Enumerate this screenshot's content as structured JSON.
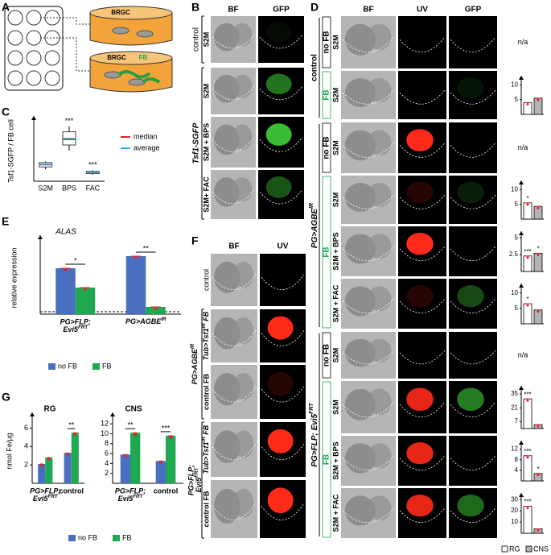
{
  "panel_letters": [
    "A",
    "B",
    "C",
    "D",
    "E",
    "F",
    "G"
  ],
  "panel_a": {
    "labels": [
      "BRGC",
      "BRGC",
      "FB"
    ]
  },
  "panel_b": {
    "columns": [
      "BF",
      "GFP"
    ],
    "groups": [
      {
        "label": "control",
        "rows": [
          "S2M"
        ]
      },
      {
        "label": "Tsf1-SGFP",
        "rows": [
          "S2M",
          "S2M + BPS",
          "S2M+ FAC"
        ]
      }
    ]
  },
  "panel_d": {
    "columns": [
      "BF",
      "UV",
      "GFP"
    ],
    "groups": [
      {
        "label": "control",
        "subgroups": [
          {
            "label": "no FB",
            "rows": [
              {
                "label": "S2M",
                "note": "n/a"
              }
            ]
          },
          {
            "label": "FB",
            "rows": [
              {
                "label": "S2M"
              }
            ]
          }
        ]
      },
      {
        "label": {
          "text": "PG>AGBE",
          "sup": "IR"
        },
        "subgroups": [
          {
            "label": "no FB",
            "rows": [
              {
                "label": "S2M",
                "note": "n/a"
              }
            ]
          },
          {
            "label": "FB",
            "rows": [
              {
                "label": "S2M"
              },
              {
                "label": "S2M + BPS"
              },
              {
                "label": "S2M + FAC"
              }
            ]
          }
        ]
      },
      {
        "label": {
          "text": "PG>FLP; Evi5",
          "sup": "FRT"
        },
        "subgroups": [
          {
            "label": "no FB",
            "rows": [
              {
                "label": "S2M",
                "note": "n/a"
              }
            ]
          },
          {
            "label": "FB",
            "rows": [
              {
                "label": "S2M"
              },
              {
                "label": "S2M + BPS"
              },
              {
                "label": "S2M + FAC"
              }
            ]
          }
        ]
      }
    ],
    "legend": [
      {
        "name": "RG",
        "color": "#ffffff"
      },
      {
        "name": "CNS",
        "color": "#b4b4b4"
      }
    ]
  },
  "panel_f": {
    "columns": [
      "BF",
      "UV"
    ],
    "rows": [
      "control"
    ],
    "groups": [
      {
        "label": {
          "text": "PG>AGBE",
          "sup": "IR"
        },
        "rows": [
          {
            "text": "Tub>Tsf1",
            "sup": "IR",
            "after": " FB"
          },
          "control FB"
        ]
      },
      {
        "label": [
          "PG>FLP;",
          {
            "text": "Evi5",
            "sup": "FRT"
          }
        ],
        "rows": [
          {
            "text": "Tub>Tsf1",
            "sup": "IR",
            "after": " FB"
          },
          "control FB"
        ]
      }
    ]
  },
  "chart_data": [
    {
      "type": "box",
      "y_label": "Tsf1-SGFP / FB cell",
      "categories": [
        "S2M",
        "BPS",
        "FAC"
      ],
      "min": [
        11,
        28,
        6
      ],
      "q1": [
        13,
        33,
        7
      ],
      "median": [
        15,
        38,
        8
      ],
      "q3": [
        17,
        45,
        9
      ],
      "max": [
        18,
        50,
        10
      ],
      "mean": [
        15.5,
        39,
        8.2
      ],
      "median_color": "#e8202a",
      "mean_color": "#29b6e6",
      "legend": [
        "median",
        "average"
      ],
      "annotations": [
        null,
        "***",
        "***"
      ],
      "ylim": [
        0,
        55
      ]
    },
    {
      "type": "bar",
      "title": "ALAS",
      "y_label": "relative expression",
      "categories": [
        [
          "PG>FLP;",
          {
            "text": "Evi5",
            "sup": "FRT"
          }
        ],
        {
          "text": "PG>AGBE",
          "sup": "IR"
        }
      ],
      "series": [
        {
          "name": "no FB",
          "color": "#4a6fc1",
          "values": [
            19,
            24
          ]
        },
        {
          "name": "FB",
          "color": "#1fa84f",
          "values": [
            11,
            3
          ]
        }
      ],
      "significance": [
        "*",
        "**"
      ],
      "reference_line": 1,
      "ylim": [
        0,
        30
      ]
    },
    {
      "type": "bar",
      "title": "RG",
      "y_label": "nmol Fe/µg",
      "categories": [
        [
          "PG>FLP;",
          {
            "text": "Evi5",
            "sup": "FRT"
          }
        ],
        "control"
      ],
      "series": [
        {
          "name": "no FB",
          "color": "#4a6fc1",
          "values": [
            2.1,
            3.3
          ]
        },
        {
          "name": "FB",
          "color": "#1fa84f",
          "values": [
            2.8,
            5.5
          ]
        }
      ],
      "significance": [
        null,
        "**"
      ],
      "ylim": [
        0,
        7
      ],
      "yticks": [
        2,
        4,
        6
      ]
    },
    {
      "type": "bar",
      "title": "CNS",
      "categories": [
        [
          "PG>FLP;",
          {
            "text": "Evi5",
            "sup": "FRT"
          }
        ],
        "control"
      ],
      "series": [
        {
          "color": "#4a6fc1",
          "values": [
            5.8,
            4.5
          ]
        },
        {
          "color": "#1fa84f",
          "values": [
            10.2,
            9.6
          ]
        }
      ],
      "significance": [
        "**",
        "***"
      ],
      "ylim": [
        0,
        13
      ],
      "yticks": [
        2,
        4,
        6,
        8,
        10,
        12
      ]
    },
    {
      "type": "minibar",
      "values": [
        4,
        5.5
      ],
      "ylim": [
        0,
        12
      ],
      "yticks": [
        5,
        10
      ]
    },
    {
      "type": "minibar",
      "values": [
        5.5,
        4.3
      ],
      "ylim": [
        0,
        12
      ],
      "yticks": [
        5,
        10
      ],
      "annotations": [
        "*",
        null
      ]
    },
    {
      "type": "minibar",
      "values": [
        2.3,
        2.7
      ],
      "ylim": [
        0,
        5.5
      ],
      "yticks": [
        2.5,
        5
      ],
      "annotations": [
        "***",
        "*"
      ]
    },
    {
      "type": "minibar",
      "values": [
        6.5,
        4.5
      ],
      "ylim": [
        0,
        12
      ],
      "yticks": [
        5,
        10
      ],
      "annotations": [
        "*",
        null
      ]
    },
    {
      "type": "minibar",
      "values": [
        30,
        4
      ],
      "ylim": [
        0,
        40
      ],
      "yticks": [
        7,
        21,
        35
      ],
      "annotations": [
        "***",
        null
      ]
    },
    {
      "type": "minibar",
      "values": [
        9.5,
        2.8
      ],
      "ylim": [
        0,
        14
      ],
      "yticks": [
        4,
        8,
        12
      ],
      "annotations": [
        "***",
        "*"
      ]
    },
    {
      "type": "minibar",
      "values": [
        24,
        4
      ],
      "ylim": [
        0,
        33
      ],
      "yticks": [
        10,
        20,
        30
      ],
      "annotations": [
        "***",
        null
      ]
    }
  ]
}
